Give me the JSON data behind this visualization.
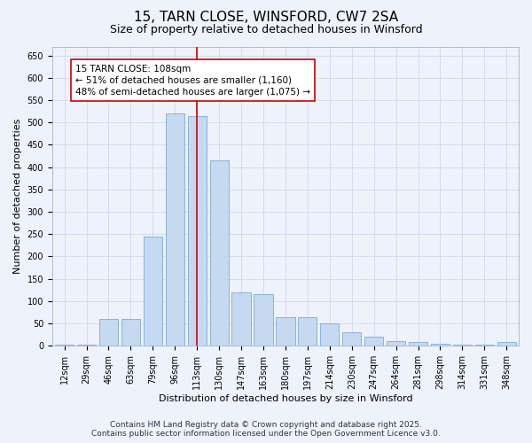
{
  "title": "15, TARN CLOSE, WINSFORD, CW7 2SA",
  "subtitle": "Size of property relative to detached houses in Winsford",
  "xlabel": "Distribution of detached houses by size in Winsford",
  "ylabel": "Number of detached properties",
  "categories": [
    "12sqm",
    "29sqm",
    "46sqm",
    "63sqm",
    "79sqm",
    "96sqm",
    "113sqm",
    "130sqm",
    "147sqm",
    "163sqm",
    "180sqm",
    "197sqm",
    "214sqm",
    "230sqm",
    "247sqm",
    "264sqm",
    "281sqm",
    "298sqm",
    "314sqm",
    "331sqm",
    "348sqm"
  ],
  "values": [
    2,
    2,
    60,
    60,
    245,
    520,
    515,
    415,
    120,
    115,
    65,
    65,
    50,
    30,
    20,
    10,
    8,
    5,
    3,
    2,
    8
  ],
  "bar_color": "#c5d9f0",
  "bar_edge_color": "#6a9fd0",
  "vline_x_index": 6,
  "vline_color": "#cc0000",
  "annotation_text": "15 TARN CLOSE: 108sqm\n← 51% of detached houses are smaller (1,160)\n48% of semi-detached houses are larger (1,075) →",
  "annotation_box_color": "#ffffff",
  "annotation_box_edge_color": "#cc0000",
  "ylim": [
    0,
    670
  ],
  "yticks": [
    0,
    50,
    100,
    150,
    200,
    250,
    300,
    350,
    400,
    450,
    500,
    550,
    600,
    650
  ],
  "footer_line1": "Contains HM Land Registry data © Crown copyright and database right 2025.",
  "footer_line2": "Contains public sector information licensed under the Open Government Licence v3.0.",
  "background_color": "#eef2fb",
  "grid_color": "#c8d4e8",
  "title_fontsize": 11,
  "subtitle_fontsize": 9,
  "axis_label_fontsize": 8,
  "tick_fontsize": 7,
  "annotation_fontsize": 7.5,
  "footer_fontsize": 6.5
}
